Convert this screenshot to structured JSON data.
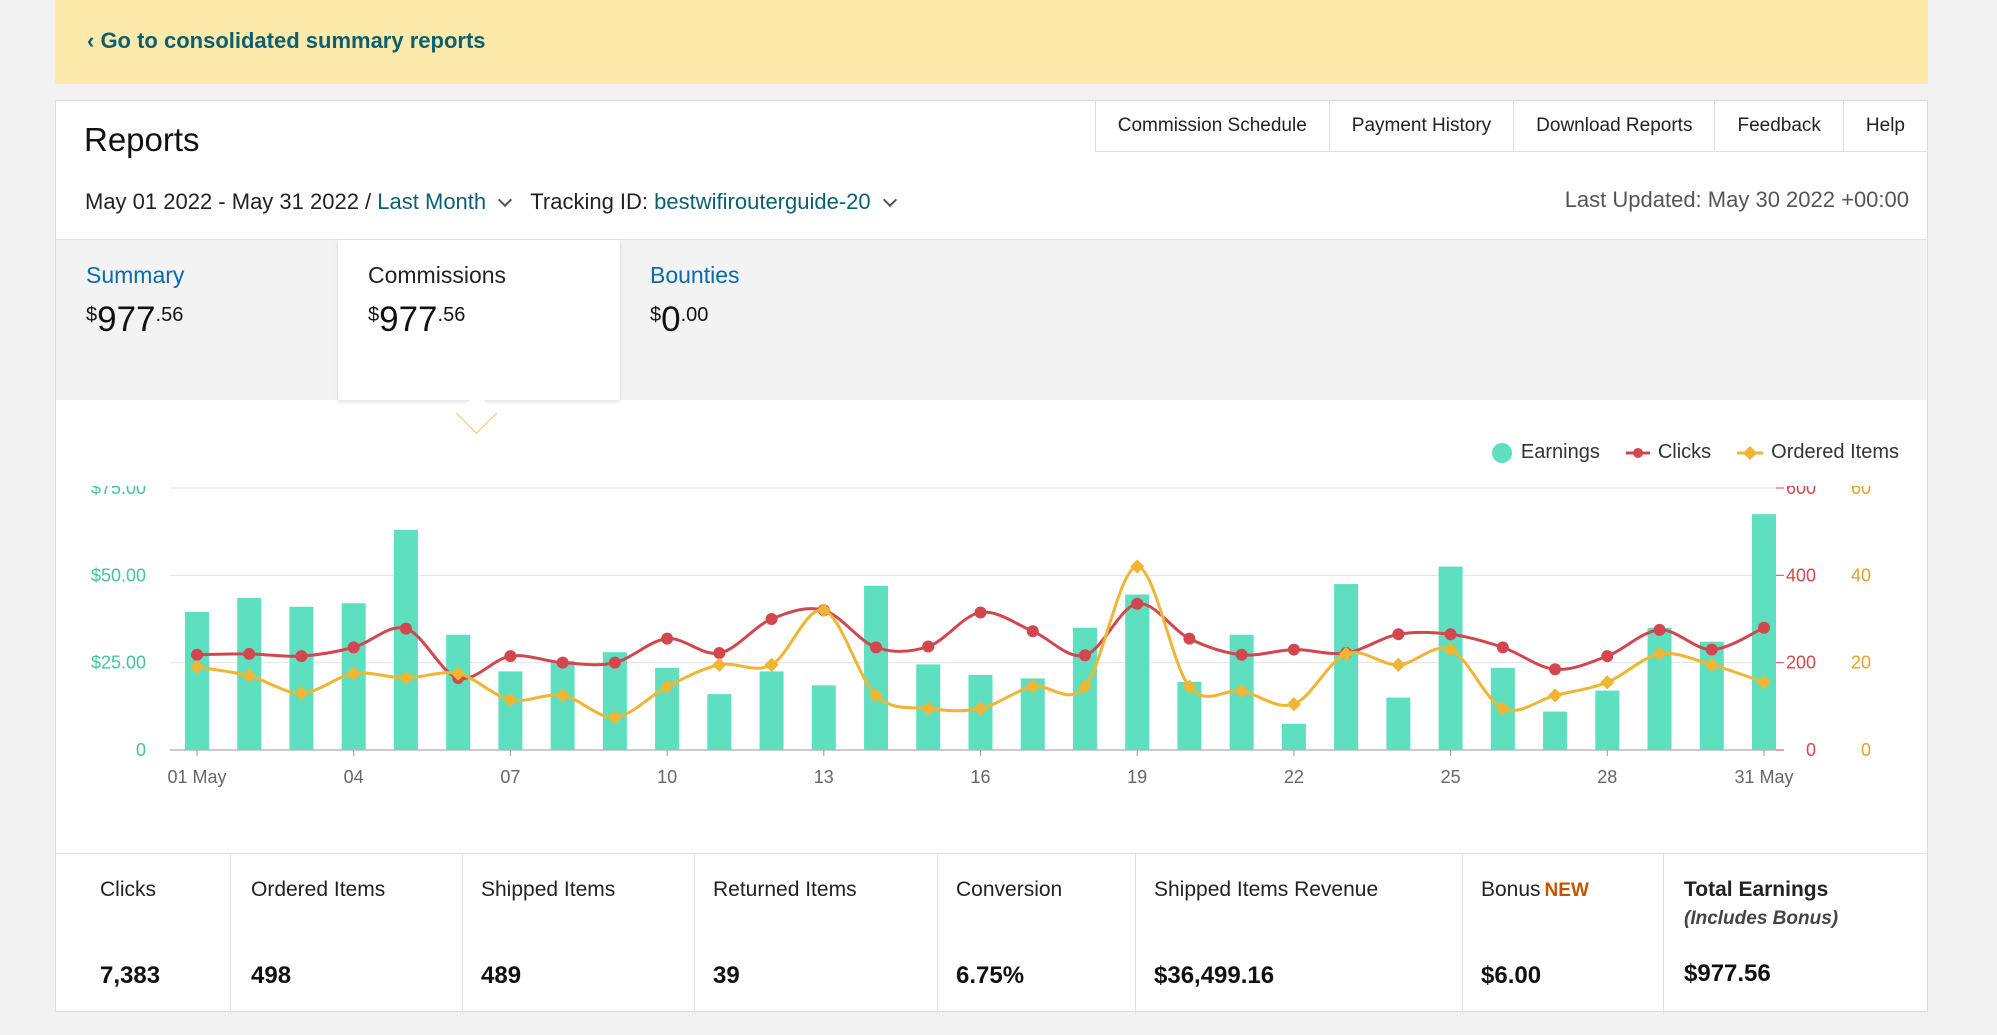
{
  "banner": {
    "link_text": "‹ Go to consolidated summary reports"
  },
  "header": {
    "title": "Reports",
    "nav": [
      "Commission Schedule",
      "Payment History",
      "Download Reports",
      "Feedback",
      "Help"
    ]
  },
  "filters": {
    "date_range": "May 01 2022 - May 31 2022 /",
    "period": "Last Month",
    "tracking_label": "Tracking ID:",
    "tracking_id": "bestwifirouterguide-20",
    "last_updated": "Last Updated: May 30 2022 +00:00"
  },
  "tabs": [
    {
      "label": "Summary",
      "symbol": "$",
      "main": "977",
      "dec": ".56",
      "active": false
    },
    {
      "label": "Commissions",
      "symbol": "$",
      "main": "977",
      "dec": ".56",
      "active": true
    },
    {
      "label": "Bounties",
      "symbol": "$",
      "main": "0",
      "dec": ".00",
      "active": false
    }
  ],
  "legend": {
    "earnings": "Earnings",
    "clicks": "Clicks",
    "ordered": "Ordered Items"
  },
  "colors": {
    "earnings": "#5ee0c0",
    "clicks": "#d2474f",
    "ordered": "#f0b533",
    "link": "#0b5f72",
    "tab_link": "#0b6aa8",
    "badge": "#c45500"
  },
  "chart_data": {
    "type": "bar",
    "x": [
      1,
      2,
      3,
      4,
      5,
      6,
      7,
      8,
      9,
      10,
      11,
      12,
      13,
      14,
      15,
      16,
      17,
      18,
      19,
      20,
      21,
      22,
      23,
      24,
      25,
      26,
      27,
      28,
      29,
      30,
      31
    ],
    "x_tick_labels": [
      {
        "day": 1,
        "label": "01 May"
      },
      {
        "day": 4,
        "label": "04"
      },
      {
        "day": 7,
        "label": "07"
      },
      {
        "day": 10,
        "label": "10"
      },
      {
        "day": 13,
        "label": "13"
      },
      {
        "day": 16,
        "label": "16"
      },
      {
        "day": 19,
        "label": "19"
      },
      {
        "day": 22,
        "label": "22"
      },
      {
        "day": 25,
        "label": "25"
      },
      {
        "day": 28,
        "label": "28"
      },
      {
        "day": 31,
        "label": "31 May"
      }
    ],
    "y_left": {
      "ticks": [
        "0",
        "$25.00",
        "$50.00",
        "$75.00"
      ],
      "ylim": [
        0,
        75
      ]
    },
    "y_right_clicks": {
      "ticks": [
        "0",
        "200",
        "400",
        "600"
      ],
      "ylim": [
        0,
        600
      ]
    },
    "y_right_ordered": {
      "ticks": [
        "0",
        "20",
        "40",
        "60"
      ],
      "ylim": [
        0,
        60
      ]
    },
    "grid": true,
    "legend_position": "top-right",
    "series": [
      {
        "name": "Earnings",
        "type": "bar",
        "axis": "left",
        "values": [
          39.5,
          43.5,
          41,
          42,
          63,
          33,
          22.5,
          25.5,
          28,
          23.5,
          16,
          22.5,
          18.5,
          47,
          24.5,
          21.5,
          20.5,
          35,
          44.5,
          19.5,
          33,
          7.5,
          47.5,
          15,
          52.5,
          23.5,
          11,
          17,
          35,
          31,
          67.5
        ]
      },
      {
        "name": "Clicks",
        "type": "line",
        "axis": "right_clicks",
        "values": [
          218,
          220,
          215,
          235,
          278,
          165,
          215,
          200,
          200,
          255,
          222,
          300,
          320,
          235,
          237,
          315,
          272,
          217,
          335,
          255,
          218,
          230,
          222,
          265,
          265,
          235,
          185,
          215,
          275,
          230,
          280
        ]
      },
      {
        "name": "Ordered Items",
        "type": "line",
        "axis": "right_ordered",
        "values": [
          19,
          17,
          13,
          17.5,
          16.5,
          17.5,
          11.5,
          12.5,
          7.5,
          14.5,
          19.5,
          19.5,
          32,
          12.5,
          9.5,
          9.5,
          14.5,
          14.5,
          42,
          14.5,
          13.5,
          10.5,
          22,
          19.5,
          23,
          9.5,
          12.5,
          15.5,
          22,
          19.5,
          15.5
        ]
      }
    ]
  },
  "metrics": [
    {
      "label": "Clicks",
      "value": "7,383"
    },
    {
      "label": "Ordered Items",
      "value": "498"
    },
    {
      "label": "Shipped Items",
      "value": "489"
    },
    {
      "label": "Returned Items",
      "value": "39"
    },
    {
      "label": "Conversion",
      "value": "6.75%"
    },
    {
      "label": "Shipped Items Revenue",
      "value": "$36,499.16"
    },
    {
      "label": "Bonus",
      "badge": "NEW",
      "value": "$6.00"
    },
    {
      "label": "Total Earnings",
      "sub": "(Includes Bonus)",
      "value": "$977.56"
    }
  ]
}
